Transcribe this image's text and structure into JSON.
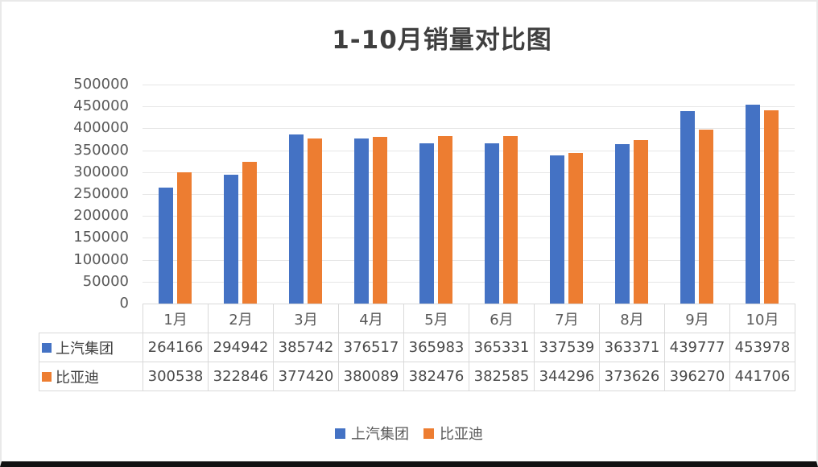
{
  "chart_data": {
    "type": "bar",
    "title": "1-10月销量对比图",
    "categories": [
      "1月",
      "2月",
      "3月",
      "4月",
      "5月",
      "6月",
      "7月",
      "8月",
      "9月",
      "10月"
    ],
    "series": [
      {
        "name": "上汽集团",
        "color": "#4472C4",
        "values": [
          264166,
          294942,
          385742,
          376517,
          365983,
          365331,
          337539,
          363371,
          439777,
          453978
        ]
      },
      {
        "name": "比亚迪",
        "color": "#ED7D31",
        "values": [
          300538,
          322846,
          377420,
          380089,
          382476,
          382585,
          344296,
          373626,
          396270,
          441706
        ]
      }
    ],
    "xlabel": "",
    "ylabel": "",
    "ylim": [
      0,
      500000
    ],
    "ytick_step": 50000,
    "y_tick_labels": [
      "0",
      "50000",
      "100000",
      "150000",
      "200000",
      "250000",
      "300000",
      "350000",
      "400000",
      "450000",
      "500000"
    ],
    "grid": true,
    "legend_position": "bottom",
    "data_table_with_legend_keys": true,
    "grid_color": "#e6e6e6",
    "table_border_color": "#d9d9d9",
    "axis_text_color": "#595959",
    "title_color": "#3f3f3f"
  }
}
